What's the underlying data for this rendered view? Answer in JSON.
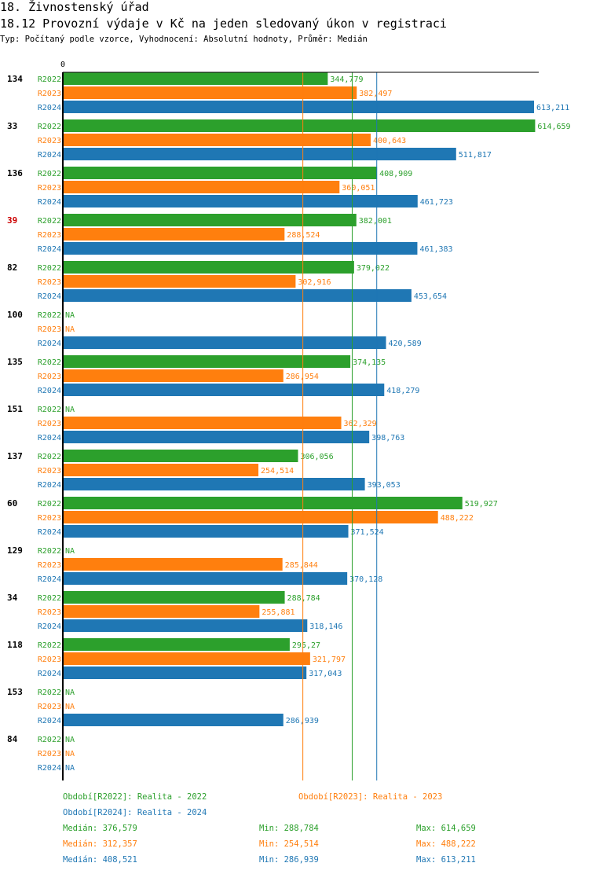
{
  "title": "18. Živnostenský úřad",
  "subtitle": "18.12 Provozní výdaje v Kč na jeden sledovaný úkon v registraci",
  "meta": "Typ: Počítaný podle vzorce, Vyhodnocení: Absolutní hodnoty, Průměr: Medián",
  "colors": {
    "R2022": "#2ca02c",
    "R2023": "#ff7f0e",
    "R2024": "#1f77b4",
    "highlight": "#cc0000"
  },
  "chart_data": {
    "type": "bar",
    "orientation": "horizontal",
    "x_tick_label": "0",
    "xlim": [
      0,
      614659
    ],
    "series_names": [
      "R2022",
      "R2023",
      "R2024"
    ],
    "groups": [
      {
        "label": "134",
        "highlight": false,
        "values": [
          344779,
          382497,
          613211
        ],
        "labels": [
          "344,779",
          "382,497",
          "613,211"
        ]
      },
      {
        "label": "33",
        "highlight": false,
        "values": [
          614659,
          400643,
          511817
        ],
        "labels": [
          "614,659",
          "400,643",
          "511,817"
        ]
      },
      {
        "label": "136",
        "highlight": false,
        "values": [
          408909,
          360051,
          461723
        ],
        "labels": [
          "408,909",
          "360,051",
          "461,723"
        ]
      },
      {
        "label": "39",
        "highlight": true,
        "values": [
          382001,
          288524,
          461383
        ],
        "labels": [
          "382,001",
          "288,524",
          "461,383"
        ]
      },
      {
        "label": "82",
        "highlight": false,
        "values": [
          379022,
          302916,
          453654
        ],
        "labels": [
          "379,022",
          "302,916",
          "453,654"
        ]
      },
      {
        "label": "100",
        "highlight": false,
        "values": [
          null,
          null,
          420589
        ],
        "labels": [
          "NA",
          "NA",
          "420,589"
        ]
      },
      {
        "label": "135",
        "highlight": false,
        "values": [
          374135,
          286954,
          418279
        ],
        "labels": [
          "374,135",
          "286,954",
          "418,279"
        ]
      },
      {
        "label": "151",
        "highlight": false,
        "values": [
          null,
          362329,
          398763
        ],
        "labels": [
          "NA",
          "362,329",
          "398,763"
        ]
      },
      {
        "label": "137",
        "highlight": false,
        "values": [
          306056,
          254514,
          393053
        ],
        "labels": [
          "306,056",
          "254,514",
          "393,053"
        ]
      },
      {
        "label": "60",
        "highlight": false,
        "values": [
          519927,
          488222,
          371524
        ],
        "labels": [
          "519,927",
          "488,222",
          "371,524"
        ]
      },
      {
        "label": "129",
        "highlight": false,
        "values": [
          null,
          285844,
          370128
        ],
        "labels": [
          "NA",
          "285,844",
          "370,128"
        ]
      },
      {
        "label": "34",
        "highlight": false,
        "values": [
          288784,
          255881,
          318146
        ],
        "labels": [
          "288,784",
          "255,881",
          "318,146"
        ]
      },
      {
        "label": "118",
        "highlight": false,
        "values": [
          295270,
          321797,
          317043
        ],
        "labels": [
          "295,27",
          "321,797",
          "317,043"
        ]
      },
      {
        "label": "153",
        "highlight": false,
        "values": [
          null,
          null,
          286939
        ],
        "labels": [
          "NA",
          "NA",
          "286,939"
        ]
      },
      {
        "label": "84",
        "highlight": false,
        "values": [
          null,
          null,
          null
        ],
        "labels": [
          "NA",
          "NA",
          "NA"
        ]
      }
    ],
    "medians": [
      376579,
      312357,
      408521
    ]
  },
  "legend": {
    "period_2022": "Období[R2022]: Realita - 2022",
    "period_2023": "Období[R2023]: Realita - 2023",
    "period_2024": "Období[R2024]: Realita - 2024",
    "stats": [
      {
        "median": "Medián: 376,579",
        "min": "Min: 288,784",
        "max": "Max: 614,659"
      },
      {
        "median": "Medián: 312,357",
        "min": "Min: 254,514",
        "max": "Max: 488,222"
      },
      {
        "median": "Medián: 408,521",
        "min": "Min: 286,939",
        "max": "Max: 613,211"
      }
    ]
  }
}
